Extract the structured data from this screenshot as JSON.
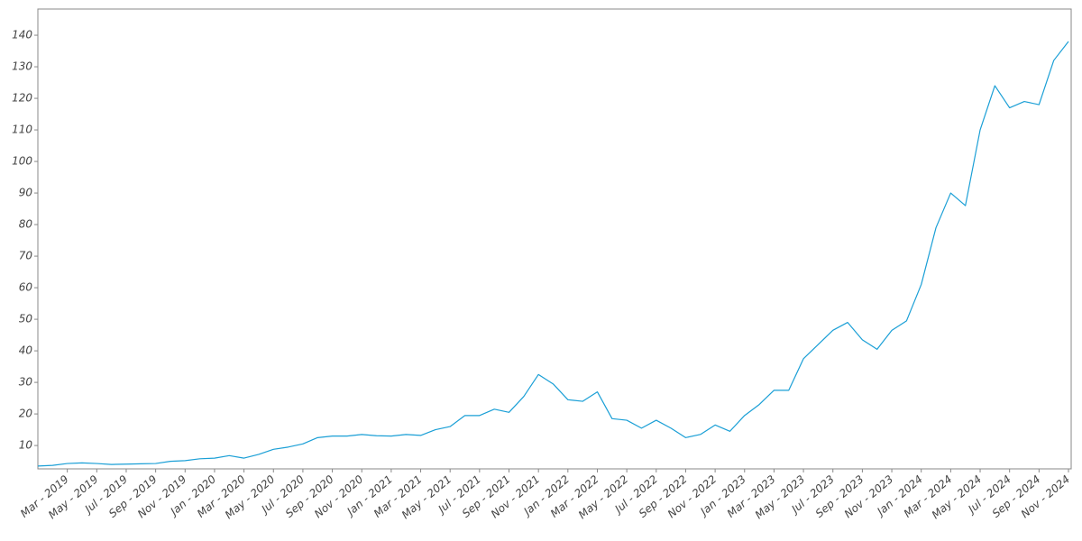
{
  "chart_data": {
    "type": "line",
    "color": "#1a9fd6",
    "x": [
      "2019-01",
      "2019-02",
      "2019-03",
      "2019-04",
      "2019-05",
      "2019-06",
      "2019-07",
      "2019-08",
      "2019-09",
      "2019-10",
      "2019-11",
      "2019-12",
      "2020-01",
      "2020-02",
      "2020-03",
      "2020-04",
      "2020-05",
      "2020-06",
      "2020-07",
      "2020-08",
      "2020-09",
      "2020-10",
      "2020-11",
      "2020-12",
      "2021-01",
      "2021-02",
      "2021-03",
      "2021-04",
      "2021-05",
      "2021-06",
      "2021-07",
      "2021-08",
      "2021-09",
      "2021-10",
      "2021-11",
      "2021-12",
      "2022-01",
      "2022-02",
      "2022-03",
      "2022-04",
      "2022-05",
      "2022-06",
      "2022-07",
      "2022-08",
      "2022-09",
      "2022-10",
      "2022-11",
      "2022-12",
      "2023-01",
      "2023-02",
      "2023-03",
      "2023-04",
      "2023-05",
      "2023-06",
      "2023-07",
      "2023-08",
      "2023-09",
      "2023-10",
      "2023-11",
      "2023-12",
      "2024-01",
      "2024-02",
      "2024-03",
      "2024-04",
      "2024-05",
      "2024-06",
      "2024-07",
      "2024-08",
      "2024-09",
      "2024-10",
      "2024-11"
    ],
    "values": [
      3.5,
      3.7,
      4.3,
      4.5,
      4.3,
      4.0,
      4.1,
      4.2,
      4.3,
      5.0,
      5.2,
      5.8,
      6.0,
      6.8,
      6.0,
      7.2,
      8.8,
      9.5,
      10.5,
      12.5,
      13.0,
      13.0,
      13.5,
      13.1,
      13.0,
      13.5,
      13.2,
      15.0,
      16.0,
      19.5,
      19.5,
      21.5,
      20.5,
      25.5,
      32.5,
      29.5,
      24.5,
      24.0,
      27.0,
      18.5,
      18.0,
      15.5,
      18.0,
      15.5,
      12.5,
      13.5,
      16.5,
      14.5,
      19.5,
      23.0,
      27.5,
      27.5,
      37.5,
      42.0,
      46.5,
      49.0,
      43.5,
      40.5,
      46.5,
      49.5,
      61.0,
      79.0,
      90.0,
      86.0,
      110.0,
      124.0,
      117.0,
      119.0,
      118.0,
      132.0,
      138.0
    ],
    "xlim": [
      "2019-01",
      "2024-11"
    ],
    "xticks": [
      {
        "value": "2019-03",
        "label": "Mar - 2019"
      },
      {
        "value": "2019-05",
        "label": "May - 2019"
      },
      {
        "value": "2019-07",
        "label": "Jul - 2019"
      },
      {
        "value": "2019-09",
        "label": "Sep - 2019"
      },
      {
        "value": "2019-11",
        "label": "Nov - 2019"
      },
      {
        "value": "2020-01",
        "label": "Jan - 2020"
      },
      {
        "value": "2020-03",
        "label": "Mar - 2020"
      },
      {
        "value": "2020-05",
        "label": "May - 2020"
      },
      {
        "value": "2020-07",
        "label": "Jul - 2020"
      },
      {
        "value": "2020-09",
        "label": "Sep - 2020"
      },
      {
        "value": "2020-11",
        "label": "Nov - 2020"
      },
      {
        "value": "2021-01",
        "label": "Jan - 2021"
      },
      {
        "value": "2021-03",
        "label": "Mar - 2021"
      },
      {
        "value": "2021-05",
        "label": "May - 2021"
      },
      {
        "value": "2021-07",
        "label": "Jul - 2021"
      },
      {
        "value": "2021-09",
        "label": "Sep - 2021"
      },
      {
        "value": "2021-11",
        "label": "Nov - 2021"
      },
      {
        "value": "2022-01",
        "label": "Jan - 2022"
      },
      {
        "value": "2022-03",
        "label": "Mar - 2022"
      },
      {
        "value": "2022-05",
        "label": "May - 2022"
      },
      {
        "value": "2022-07",
        "label": "Jul - 2022"
      },
      {
        "value": "2022-09",
        "label": "Sep - 2022"
      },
      {
        "value": "2022-11",
        "label": "Nov - 2022"
      },
      {
        "value": "2023-01",
        "label": "Jan - 2023"
      },
      {
        "value": "2023-03",
        "label": "Mar - 2023"
      },
      {
        "value": "2023-05",
        "label": "May - 2023"
      },
      {
        "value": "2023-07",
        "label": "Jul - 2023"
      },
      {
        "value": "2023-09",
        "label": "Sep - 2023"
      },
      {
        "value": "2023-11",
        "label": "Nov - 2023"
      },
      {
        "value": "2024-01",
        "label": "Jan - 2024"
      },
      {
        "value": "2024-03",
        "label": "Mar - 2024"
      },
      {
        "value": "2024-05",
        "label": "May - 2024"
      },
      {
        "value": "2024-07",
        "label": "Jul - 2024"
      },
      {
        "value": "2024-09",
        "label": "Sep - 2024"
      },
      {
        "value": "2024-11",
        "label": "Nov - 2024"
      }
    ],
    "ylim": [
      2.6,
      148.3
    ],
    "yticks": [
      10,
      20,
      30,
      40,
      50,
      60,
      70,
      80,
      90,
      100,
      110,
      120,
      130,
      140
    ],
    "grid": false
  }
}
